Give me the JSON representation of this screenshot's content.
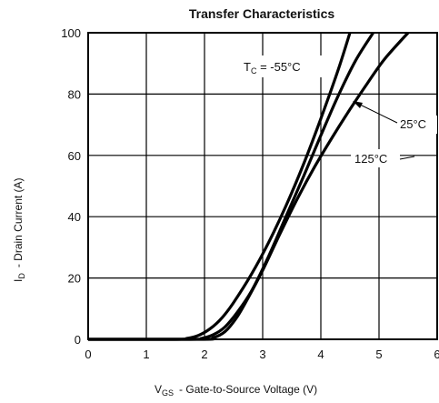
{
  "chart_data": {
    "type": "line",
    "title": "Transfer Characteristics",
    "xlabel": {
      "prefix": "V",
      "sub": "GS",
      "text": "-  Gate-to-Source Voltage (V)"
    },
    "ylabel": {
      "prefix": "I",
      "sub": "D",
      "text": "-  Drain Current (A)"
    },
    "xlim": [
      0,
      6
    ],
    "ylim": [
      0,
      100
    ],
    "xticks": [
      "0",
      "1",
      "2",
      "3",
      "4",
      "5",
      "6"
    ],
    "yticks": [
      "0",
      "20",
      "40",
      "60",
      "80",
      "100"
    ],
    "grid": true,
    "series": [
      {
        "name": "TC = -55°C",
        "color": "#000000",
        "x": [
          1.5,
          1.7,
          1.9,
          2.1,
          2.3,
          2.5,
          2.8,
          3.1,
          3.4,
          3.7,
          4.0,
          4.3,
          4.5
        ],
        "y": [
          0,
          0.3,
          1.3,
          3.5,
          7.0,
          12.0,
          21.0,
          31.5,
          43.5,
          57.0,
          72.0,
          88.0,
          100
        ]
      },
      {
        "name": "25°C",
        "color": "#000000",
        "x": [
          1.75,
          1.95,
          2.15,
          2.35,
          2.55,
          2.8,
          3.1,
          3.4,
          3.7,
          4.0,
          4.3,
          4.6,
          4.9
        ],
        "y": [
          0,
          0.3,
          1.5,
          4.0,
          8.5,
          15.5,
          27.0,
          40.0,
          53.0,
          66.5,
          79.5,
          91.0,
          100
        ]
      },
      {
        "name": "125°C",
        "color": "#000000",
        "x": [
          1.95,
          2.15,
          2.35,
          2.55,
          2.75,
          3.0,
          3.3,
          3.6,
          3.9,
          4.2,
          4.5,
          4.8,
          5.1,
          5.5
        ],
        "y": [
          0,
          0.5,
          2.5,
          7.0,
          13.5,
          22.5,
          34.5,
          46.0,
          56.5,
          66.0,
          75.0,
          83.5,
          91.5,
          100
        ]
      }
    ],
    "annotations": [
      {
        "label": "TC = -55°C",
        "prefix": "T",
        "sub": "C",
        "text": " = -55°C"
      },
      {
        "label": "25°C",
        "text": "25°C"
      },
      {
        "label": "125°C",
        "text": "125°C"
      }
    ]
  }
}
